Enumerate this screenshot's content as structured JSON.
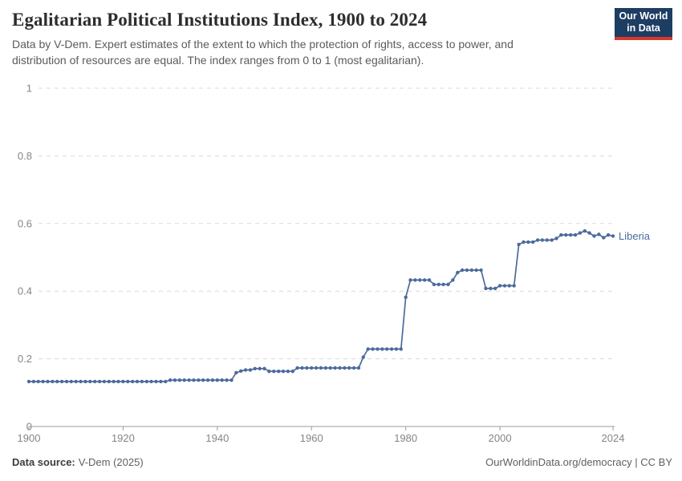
{
  "header": {
    "title": "Egalitarian Political Institutions Index, 1900 to 2024",
    "subtitle": "Data by V-Dem. Expert estimates of the extent to which the protection of rights, access to power, and distribution of resources are equal. The index ranges from 0 to 1 (most egalitarian).",
    "logo": {
      "line1": "Our World",
      "line2": "in Data",
      "bg_color": "#1d3d63",
      "accent_color": "#d7382e"
    }
  },
  "chart_data": {
    "type": "line",
    "title": "Egalitarian Political Institutions Index, 1900 to 2024",
    "xlabel": "",
    "ylabel": "",
    "xlim": [
      1900,
      2024
    ],
    "ylim": [
      0,
      1
    ],
    "grid": "dashed-horizontal",
    "legend": "end-of-line-label",
    "x_ticks": [
      1900,
      1920,
      1940,
      1960,
      1980,
      2000,
      2024
    ],
    "x_tick_labels": [
      "1900",
      "1920",
      "1940",
      "1960",
      "1980",
      "2000",
      "2024"
    ],
    "y_ticks": [
      0,
      0.2,
      0.4,
      0.6,
      0.8,
      1
    ],
    "y_tick_labels": [
      "0",
      "0.2",
      "0.4",
      "0.6",
      "0.8",
      "1"
    ],
    "series": [
      {
        "name": "Liberia",
        "color": "#4c6a9c",
        "x_start": 1900,
        "x_step": 1,
        "values": [
          0.133,
          0.133,
          0.133,
          0.133,
          0.133,
          0.133,
          0.133,
          0.133,
          0.133,
          0.133,
          0.133,
          0.133,
          0.133,
          0.133,
          0.133,
          0.133,
          0.133,
          0.133,
          0.133,
          0.133,
          0.133,
          0.133,
          0.133,
          0.133,
          0.133,
          0.133,
          0.133,
          0.133,
          0.133,
          0.133,
          0.137,
          0.137,
          0.137,
          0.137,
          0.137,
          0.137,
          0.137,
          0.137,
          0.137,
          0.137,
          0.137,
          0.137,
          0.137,
          0.137,
          0.159,
          0.164,
          0.167,
          0.167,
          0.171,
          0.171,
          0.171,
          0.163,
          0.163,
          0.163,
          0.163,
          0.163,
          0.163,
          0.173,
          0.173,
          0.173,
          0.173,
          0.173,
          0.173,
          0.173,
          0.173,
          0.173,
          0.173,
          0.173,
          0.173,
          0.173,
          0.173,
          0.205,
          0.229,
          0.229,
          0.229,
          0.229,
          0.229,
          0.229,
          0.229,
          0.229,
          0.382,
          0.433,
          0.433,
          0.433,
          0.433,
          0.433,
          0.42,
          0.42,
          0.42,
          0.42,
          0.433,
          0.455,
          0.462,
          0.462,
          0.462,
          0.462,
          0.462,
          0.408,
          0.408,
          0.408,
          0.416,
          0.416,
          0.416,
          0.416,
          0.538,
          0.545,
          0.545,
          0.545,
          0.551,
          0.551,
          0.551,
          0.551,
          0.556,
          0.566,
          0.566,
          0.566,
          0.566,
          0.572,
          0.578,
          0.572,
          0.563,
          0.568,
          0.558,
          0.566,
          0.563
        ]
      }
    ]
  },
  "footer": {
    "source_label": "Data source:",
    "source_value": "V-Dem (2025)",
    "credit": "OurWorldinData.org/democracy | CC BY"
  }
}
